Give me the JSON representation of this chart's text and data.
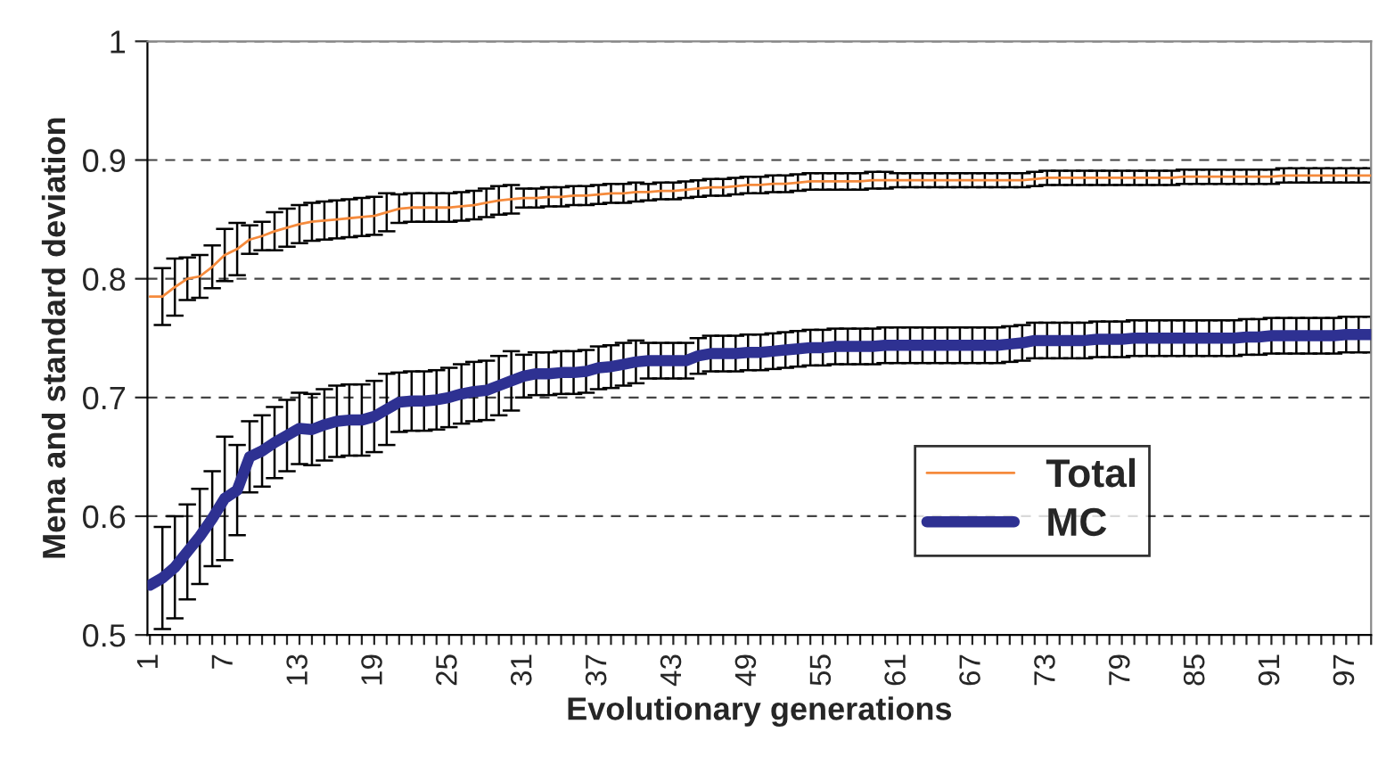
{
  "chart_data": {
    "type": "line",
    "xlabel": "Evolutionary generations",
    "ylabel": "Mena and standard deviation",
    "categories": [
      "1",
      null,
      null,
      null,
      null,
      null,
      "7",
      null,
      null,
      null,
      null,
      null,
      "13",
      null,
      null,
      null,
      null,
      null,
      "19",
      null,
      null,
      null,
      null,
      null,
      "25",
      null,
      null,
      null,
      null,
      null,
      "31",
      null,
      null,
      null,
      null,
      null,
      "37",
      null,
      null,
      null,
      null,
      null,
      "43",
      null,
      null,
      null,
      null,
      null,
      "49",
      null,
      null,
      null,
      null,
      null,
      "55",
      null,
      null,
      null,
      null,
      null,
      "61",
      null,
      null,
      null,
      null,
      null,
      "67",
      null,
      null,
      null,
      null,
      null,
      "73",
      null,
      null,
      null,
      null,
      null,
      "79",
      null,
      null,
      null,
      null,
      null,
      "85",
      null,
      null,
      null,
      null,
      null,
      "91",
      null,
      null,
      null,
      null,
      null,
      "97",
      null,
      null
    ],
    "series": [
      {
        "name": "Total",
        "color": "#f58a3c",
        "values": [
          0.785,
          0.785,
          0.793,
          0.8,
          0.802,
          0.81,
          0.82,
          0.825,
          0.833,
          0.836,
          0.84,
          0.843,
          0.846,
          0.848,
          0.849,
          0.85,
          0.851,
          0.852,
          0.853,
          0.856,
          0.859,
          0.86,
          0.86,
          0.86,
          0.86,
          0.861,
          0.862,
          0.864,
          0.866,
          0.867,
          0.868,
          0.868,
          0.869,
          0.869,
          0.87,
          0.87,
          0.871,
          0.872,
          0.872,
          0.873,
          0.873,
          0.874,
          0.874,
          0.875,
          0.876,
          0.877,
          0.877,
          0.878,
          0.879,
          0.879,
          0.88,
          0.88,
          0.881,
          0.882,
          0.882,
          0.882,
          0.882,
          0.882,
          0.883,
          0.883,
          0.883,
          0.883,
          0.883,
          0.883,
          0.883,
          0.883,
          0.883,
          0.883,
          0.883,
          0.883,
          0.883,
          0.884,
          0.885,
          0.885,
          0.885,
          0.885,
          0.885,
          0.885,
          0.885,
          0.885,
          0.885,
          0.885,
          0.885,
          0.886,
          0.886,
          0.886,
          0.886,
          0.886,
          0.886,
          0.886,
          0.886,
          0.887,
          0.887,
          0.887,
          0.887,
          0.887,
          0.887,
          0.887,
          0.887
        ],
        "errors": [
          null,
          0.024,
          0.024,
          0.018,
          0.018,
          0.018,
          0.022,
          0.022,
          0.012,
          0.012,
          0.016,
          0.016,
          0.016,
          0.016,
          0.016,
          0.016,
          0.016,
          0.016,
          0.016,
          0.016,
          0.012,
          0.012,
          0.012,
          0.012,
          0.012,
          0.012,
          0.012,
          0.012,
          0.012,
          0.012,
          0.008,
          0.008,
          0.008,
          0.008,
          0.008,
          0.008,
          0.008,
          0.008,
          0.008,
          0.008,
          0.007,
          0.007,
          0.007,
          0.007,
          0.007,
          0.007,
          0.007,
          0.007,
          0.007,
          0.007,
          0.007,
          0.007,
          0.007,
          0.007,
          0.007,
          0.007,
          0.007,
          0.007,
          0.007,
          0.007,
          0.006,
          0.006,
          0.006,
          0.006,
          0.006,
          0.006,
          0.006,
          0.006,
          0.006,
          0.006,
          0.006,
          0.006,
          0.006,
          0.006,
          0.006,
          0.006,
          0.006,
          0.006,
          0.006,
          0.006,
          0.006,
          0.006,
          0.006,
          0.006,
          0.006,
          0.006,
          0.006,
          0.006,
          0.006,
          0.006,
          0.006,
          0.006,
          0.006,
          0.006,
          0.006,
          0.006,
          0.006,
          0.006,
          0.006
        ]
      },
      {
        "name": "MC",
        "color": "#2e3192",
        "values": [
          0.542,
          0.548,
          0.557,
          0.57,
          0.583,
          0.598,
          0.615,
          0.622,
          0.65,
          0.655,
          0.662,
          0.668,
          0.674,
          0.673,
          0.677,
          0.68,
          0.681,
          0.681,
          0.684,
          0.69,
          0.696,
          0.697,
          0.697,
          0.698,
          0.7,
          0.703,
          0.705,
          0.706,
          0.71,
          0.714,
          0.718,
          0.72,
          0.72,
          0.721,
          0.721,
          0.722,
          0.725,
          0.726,
          0.728,
          0.73,
          0.731,
          0.731,
          0.731,
          0.731,
          0.735,
          0.737,
          0.737,
          0.737,
          0.738,
          0.738,
          0.739,
          0.74,
          0.741,
          0.742,
          0.742,
          0.743,
          0.743,
          0.743,
          0.743,
          0.744,
          0.744,
          0.744,
          0.744,
          0.744,
          0.744,
          0.744,
          0.744,
          0.744,
          0.744,
          0.745,
          0.746,
          0.748,
          0.748,
          0.748,
          0.748,
          0.748,
          0.749,
          0.749,
          0.749,
          0.75,
          0.75,
          0.75,
          0.75,
          0.75,
          0.75,
          0.75,
          0.75,
          0.75,
          0.751,
          0.751,
          0.752,
          0.752,
          0.752,
          0.752,
          0.752,
          0.752,
          0.753,
          0.753,
          0.753
        ],
        "errors": [
          null,
          0.043,
          0.043,
          0.04,
          0.04,
          0.04,
          0.052,
          0.038,
          0.03,
          0.03,
          0.03,
          0.03,
          0.03,
          0.03,
          0.03,
          0.03,
          0.03,
          0.03,
          0.03,
          0.03,
          0.025,
          0.025,
          0.025,
          0.025,
          0.025,
          0.025,
          0.025,
          0.025,
          0.025,
          0.025,
          0.018,
          0.018,
          0.018,
          0.018,
          0.018,
          0.018,
          0.018,
          0.018,
          0.018,
          0.018,
          0.015,
          0.015,
          0.015,
          0.015,
          0.015,
          0.015,
          0.015,
          0.015,
          0.015,
          0.015,
          0.015,
          0.015,
          0.015,
          0.015,
          0.015,
          0.015,
          0.015,
          0.015,
          0.015,
          0.015,
          0.015,
          0.015,
          0.015,
          0.015,
          0.015,
          0.015,
          0.015,
          0.015,
          0.015,
          0.015,
          0.015,
          0.015,
          0.015,
          0.015,
          0.015,
          0.015,
          0.015,
          0.015,
          0.015,
          0.015,
          0.015,
          0.015,
          0.015,
          0.015,
          0.015,
          0.015,
          0.015,
          0.015,
          0.015,
          0.015,
          0.015,
          0.015,
          0.015,
          0.015,
          0.015,
          0.015,
          0.015,
          0.015,
          0.015
        ]
      }
    ],
    "ylim": [
      0.5,
      1
    ],
    "yticks": [
      0.5,
      0.6,
      0.7,
      0.8,
      0.9,
      {
        "value": 1,
        "label": "1"
      }
    ],
    "grid": "y",
    "legend": "lower right",
    "line_style": "solid",
    "marker": "none"
  }
}
